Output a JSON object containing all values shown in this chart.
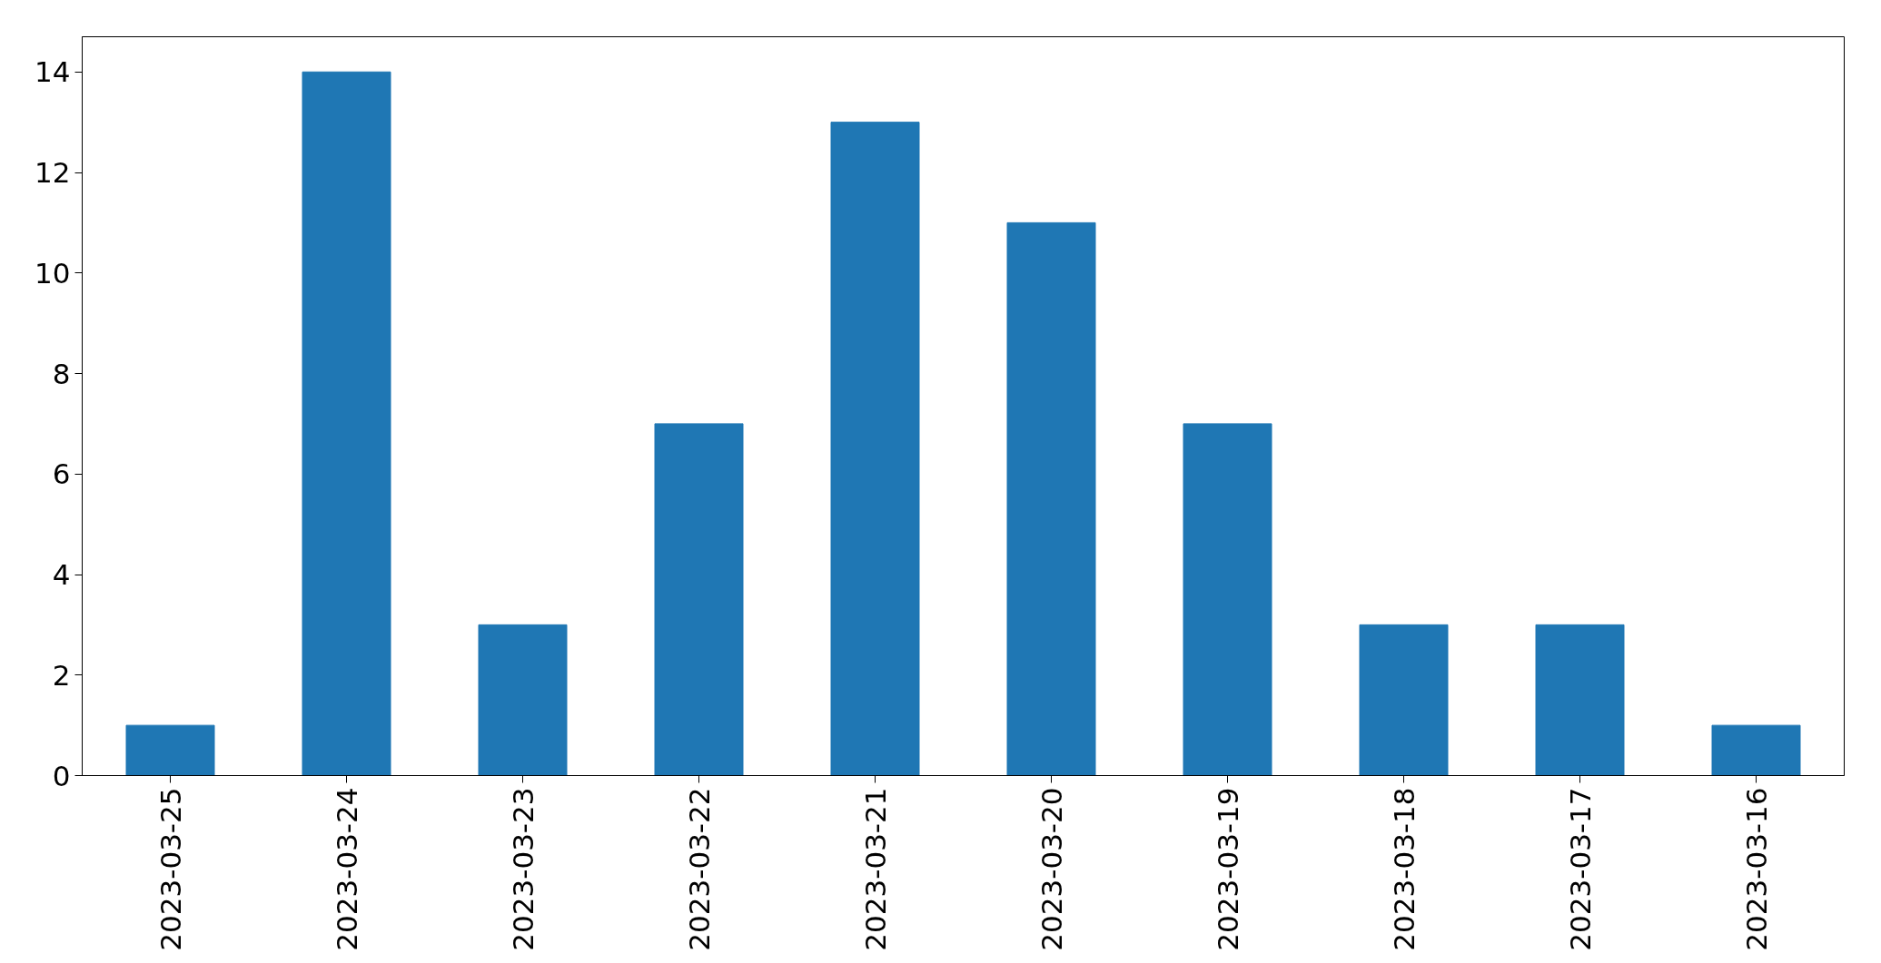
{
  "chart_data": {
    "type": "bar",
    "categories": [
      "2023-03-25",
      "2023-03-24",
      "2023-03-23",
      "2023-03-22",
      "2023-03-21",
      "2023-03-20",
      "2023-03-19",
      "2023-03-18",
      "2023-03-17",
      "2023-03-16"
    ],
    "values": [
      1,
      14,
      3,
      7,
      13,
      11,
      7,
      3,
      3,
      1
    ],
    "color": "#1f77b4",
    "ylim": [
      0,
      14.7
    ],
    "yticks": [
      0,
      2,
      4,
      6,
      8,
      10,
      12,
      14
    ],
    "grid": false
  }
}
